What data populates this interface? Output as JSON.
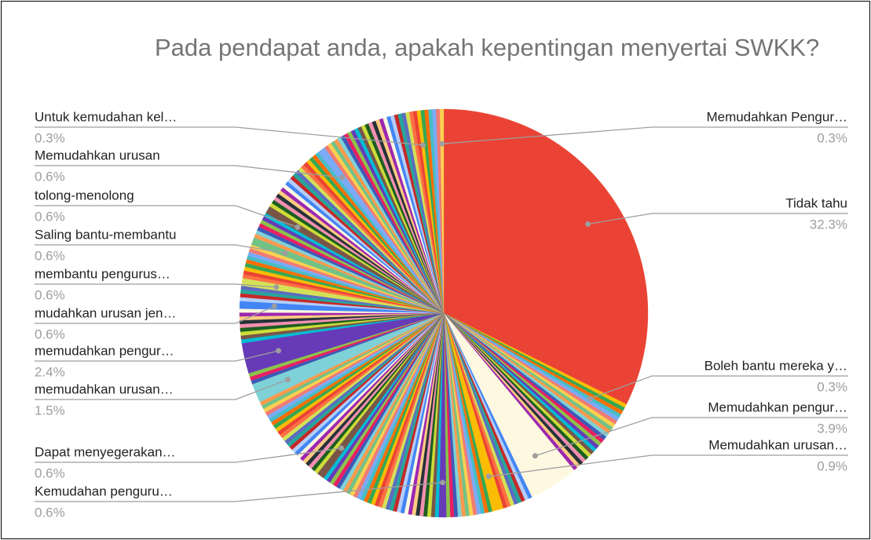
{
  "chart_data": {
    "type": "pie",
    "title": "Pada pendapat anda, apakah kepentingan menyertai SWKK?",
    "categories": [
      "Tidak tahu",
      null,
      null,
      null,
      "Boleh bantu mereka y…",
      null,
      null,
      null,
      null,
      null,
      null,
      null,
      null,
      null,
      null,
      null,
      null,
      null,
      null,
      null,
      null,
      null,
      null,
      "Memudahkan pengur…",
      null,
      null,
      null,
      null,
      null,
      null,
      null,
      null,
      "Memudahkan urusan…",
      null,
      null,
      null,
      null,
      null,
      null,
      null,
      null,
      null,
      null,
      null,
      null,
      "Kemudahan penguru…",
      null,
      null,
      null,
      null,
      null,
      null,
      null,
      null,
      null,
      null,
      null,
      null,
      null,
      null,
      null,
      null,
      null,
      null,
      null,
      null,
      null,
      null,
      null,
      null,
      null,
      null,
      null,
      null,
      null,
      null,
      null,
      null,
      "Dapat menyegerakan…",
      null,
      null,
      null,
      null,
      null,
      null,
      null,
      null,
      null,
      null,
      null,
      null,
      null,
      null,
      null,
      null,
      null,
      null,
      null,
      null,
      null,
      null,
      null,
      null,
      "memudahkan urusan…",
      null,
      null,
      null,
      "memudahkan pengur…",
      null,
      null,
      null,
      null,
      null,
      null,
      null,
      null,
      null,
      "mudahkan urusan jen…",
      null,
      null,
      null,
      null,
      "membantu pengurus…",
      null,
      null,
      null,
      null,
      null,
      null,
      null,
      null,
      null,
      "Saling bantu-membantu",
      null,
      null,
      null,
      null,
      null,
      null,
      null,
      "tolong-menolong",
      null,
      null,
      null,
      null,
      null,
      null,
      null,
      null,
      null,
      null,
      null,
      null,
      null,
      null,
      null,
      null,
      null,
      null,
      null,
      "Memudahkan urusan",
      null,
      null,
      null,
      null,
      null,
      null,
      null,
      null,
      null,
      null,
      null,
      null,
      null,
      null,
      null,
      null,
      null,
      null,
      null,
      null,
      null,
      null,
      null,
      null,
      null,
      null,
      "Untuk kemudahan kel…",
      null,
      null,
      null,
      null,
      null,
      "Memudahkan Pengur…"
    ],
    "values": [
      32.3,
      0.3,
      0.3,
      0.3,
      0.3,
      0.3,
      0.3,
      0.3,
      0.3,
      0.3,
      0.3,
      0.3,
      0.3,
      0.3,
      0.3,
      0.3,
      0.3,
      0.3,
      0.3,
      0.3,
      0.3,
      0.3,
      0.3,
      3.9,
      0.3,
      0.3,
      0.3,
      0.3,
      0.3,
      0.3,
      0.3,
      0.3,
      0.9,
      0.3,
      0.3,
      0.3,
      0.3,
      0.3,
      0.3,
      0.3,
      0.3,
      0.3,
      0.3,
      0.3,
      0.3,
      0.6,
      0.3,
      0.3,
      0.3,
      0.3,
      0.3,
      0.3,
      0.3,
      0.3,
      0.3,
      0.3,
      0.3,
      0.3,
      0.3,
      0.3,
      0.3,
      0.3,
      0.3,
      0.3,
      0.3,
      0.3,
      0.3,
      0.3,
      0.3,
      0.3,
      0.3,
      0.3,
      0.3,
      0.3,
      0.3,
      0.3,
      0.3,
      0.3,
      0.6,
      0.3,
      0.3,
      0.3,
      0.3,
      0.3,
      0.3,
      0.3,
      0.3,
      0.3,
      0.3,
      0.3,
      0.3,
      0.3,
      0.3,
      0.3,
      0.3,
      0.3,
      0.3,
      0.3,
      0.3,
      0.3,
      0.3,
      0.3,
      0.3,
      1.5,
      0.3,
      0.3,
      0.3,
      2.4,
      0.3,
      0.3,
      0.3,
      0.3,
      0.3,
      0.3,
      0.3,
      0.3,
      0.3,
      0.6,
      0.3,
      0.3,
      0.3,
      0.3,
      0.6,
      0.3,
      0.3,
      0.3,
      0.3,
      0.3,
      0.3,
      0.3,
      0.3,
      0.3,
      0.6,
      0.3,
      0.3,
      0.3,
      0.3,
      0.3,
      0.3,
      0.3,
      0.6,
      0.3,
      0.3,
      0.3,
      0.3,
      0.3,
      0.3,
      0.3,
      0.3,
      0.3,
      0.3,
      0.3,
      0.3,
      0.3,
      0.3,
      0.3,
      0.3,
      0.3,
      0.3,
      0.3,
      0.6,
      0.3,
      0.3,
      0.3,
      0.3,
      0.3,
      0.3,
      0.3,
      0.3,
      0.3,
      0.3,
      0.3,
      0.3,
      0.3,
      0.3,
      0.3,
      0.3,
      0.3,
      0.3,
      0.3,
      0.3,
      0.3,
      0.3,
      0.3,
      0.3,
      0.3,
      0.3,
      0.3,
      0.3,
      0.3,
      0.3,
      0.3,
      0.3,
      0.3
    ],
    "value_labels": [
      "32.3%",
      null,
      null,
      null,
      "0.3%",
      null,
      null,
      null,
      null,
      null,
      null,
      null,
      null,
      null,
      null,
      null,
      null,
      null,
      null,
      null,
      null,
      null,
      null,
      "3.9%",
      null,
      null,
      null,
      null,
      null,
      null,
      null,
      null,
      "0.9%",
      null,
      null,
      null,
      null,
      null,
      null,
      null,
      null,
      null,
      null,
      null,
      null,
      "0.6%",
      null,
      null,
      null,
      null,
      null,
      null,
      null,
      null,
      null,
      null,
      null,
      null,
      null,
      null,
      null,
      null,
      null,
      null,
      null,
      null,
      null,
      null,
      null,
      null,
      null,
      null,
      null,
      null,
      null,
      null,
      null,
      null,
      "0.6%",
      null,
      null,
      null,
      null,
      null,
      null,
      null,
      null,
      null,
      null,
      null,
      null,
      null,
      null,
      null,
      null,
      null,
      null,
      null,
      null,
      null,
      null,
      null,
      null,
      "1.5%",
      null,
      null,
      null,
      "2.4%",
      null,
      null,
      null,
      null,
      null,
      null,
      null,
      null,
      null,
      "0.6%",
      null,
      null,
      null,
      null,
      "0.6%",
      null,
      null,
      null,
      null,
      null,
      null,
      null,
      null,
      null,
      "0.6%",
      null,
      null,
      null,
      null,
      null,
      null,
      null,
      "0.6%",
      null,
      null,
      null,
      null,
      null,
      null,
      null,
      null,
      null,
      null,
      null,
      null,
      null,
      null,
      null,
      null,
      null,
      null,
      null,
      "0.6%",
      null,
      null,
      null,
      null,
      null,
      null,
      null,
      null,
      null,
      null,
      null,
      null,
      null,
      null,
      null,
      null,
      null,
      null,
      null,
      null,
      null,
      null,
      null,
      null,
      null,
      null,
      "0.3%",
      null,
      null,
      null,
      null,
      null,
      "0.3%"
    ],
    "colors": [
      "#ea4335",
      "#fbbc04",
      "#34a853",
      "#ff6d01",
      "#46bdc6",
      "#7baaf7",
      "#f07b72",
      "#fcd04f",
      "#71c287",
      "#ff994d",
      "#7ed1d7",
      "#3d5ab6",
      "#e91e63",
      "#8bc34a",
      "#673ab7",
      "#00bcd4",
      "#795548",
      "#cddc39",
      "#1b5e20",
      "#f48fb1",
      "#263238",
      "#ffcc80",
      "#9c27b0",
      "#fff8e1",
      "#4285f4",
      "#b3cefb",
      "#c62828",
      "#26a69a",
      "#5c6bc0",
      "#d4e157",
      "#ff7043"
    ]
  }
}
